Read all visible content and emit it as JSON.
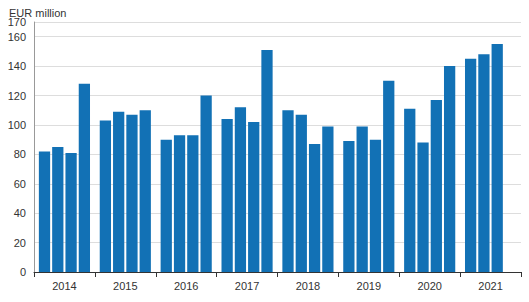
{
  "chart_data": {
    "type": "bar",
    "ylabel": "EUR million",
    "categories": [
      "2014",
      "2015",
      "2016",
      "2017",
      "2018",
      "2019",
      "2020",
      "2021"
    ],
    "series": [
      {
        "values": [
          82,
          103,
          90,
          104,
          110,
          89,
          111,
          145
        ]
      },
      {
        "values": [
          85,
          109,
          93,
          112,
          107,
          99,
          88,
          148
        ]
      },
      {
        "values": [
          81,
          107,
          93,
          102,
          87,
          90,
          117,
          155
        ]
      },
      {
        "values": [
          128,
          110,
          120,
          151,
          99,
          130,
          140,
          null
        ]
      }
    ],
    "color": "#1271b5",
    "ylim": [
      0,
      170
    ],
    "yticks": [
      0,
      20,
      40,
      60,
      80,
      100,
      120,
      140,
      160
    ],
    "grid": true
  }
}
